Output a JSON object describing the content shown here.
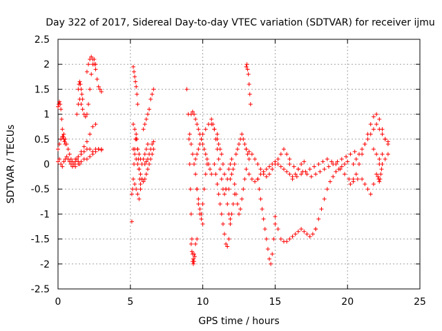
{
  "chart_data": {
    "type": "scatter",
    "title": "Day 322 of 2017, Sidereal Day-to-day VTEC variation (SDTVAR) for receiver ijmu",
    "xlabel": "GPS time / hours",
    "ylabel": "SDTVAR / TECUs",
    "xlim": [
      0,
      25
    ],
    "ylim": [
      -2.5,
      2.5
    ],
    "xticks": [
      0,
      5,
      10,
      15,
      20,
      25
    ],
    "xtick_labels": [
      "0",
      "5",
      "10",
      "15",
      "20",
      "25"
    ],
    "yticks": [
      -2.5,
      -2,
      -1.5,
      -1,
      -0.5,
      0,
      0.5,
      1,
      1.5,
      2,
      2.5
    ],
    "ytick_labels": [
      "-2.5",
      "-2",
      "-1.5",
      "-1",
      "-0.5",
      "0",
      "0.5",
      "1",
      "1.5",
      "2",
      "2.5"
    ],
    "grid": true,
    "marker": "+",
    "color": "#ff0000",
    "series": [
      {
        "name": "t0-1a",
        "x": [
          0.0,
          0.05,
          0.1,
          0.15,
          0.2,
          0.25,
          0.3,
          0.35,
          0.4,
          0.45,
          0.5
        ],
        "y": [
          1.15,
          1.2,
          1.25,
          1.2,
          1.1,
          0.9,
          0.7,
          0.55,
          0.5,
          0.45,
          0.4
        ]
      },
      {
        "name": "t0-1b",
        "x": [
          0.0,
          0.1,
          0.2,
          0.3,
          0.4,
          0.5,
          0.6,
          0.7,
          0.8,
          0.9,
          1.0,
          1.1,
          1.2,
          1.3,
          1.4,
          1.5
        ],
        "y": [
          0.05,
          0.1,
          0.0,
          -0.05,
          0.05,
          0.1,
          0.15,
          0.1,
          0.05,
          0.0,
          -0.05,
          0.0,
          0.05,
          0.1,
          0.05,
          0.0
        ]
      },
      {
        "name": "t0-1c",
        "x": [
          0.0,
          0.1,
          0.2,
          0.3,
          0.4,
          0.5,
          0.6,
          0.7,
          0.8,
          0.9,
          1.0,
          1.1,
          1.2
        ],
        "y": [
          0.3,
          0.4,
          0.5,
          0.55,
          0.6,
          0.5,
          0.4,
          0.3,
          0.2,
          0.1,
          0.05,
          0.0,
          -0.05
        ]
      },
      {
        "name": "t1-2",
        "x": [
          1.3,
          1.4,
          1.5,
          1.6,
          1.7,
          1.8,
          1.9,
          2.0,
          2.1,
          2.2,
          2.3,
          2.4,
          2.5,
          2.6
        ],
        "y": [
          1.0,
          1.2,
          1.3,
          1.2,
          1.1,
          1.0,
          0.95,
          1.0,
          1.2,
          1.5,
          1.8,
          2.0,
          2.1,
          2.0
        ]
      },
      {
        "name": "t1-2b",
        "x": [
          1.4,
          1.45,
          1.5,
          1.55,
          1.6,
          1.65,
          1.7
        ],
        "y": [
          1.5,
          1.6,
          1.65,
          1.6,
          1.5,
          1.4,
          1.3
        ]
      },
      {
        "name": "t2-3",
        "x": [
          2.0,
          2.1,
          2.2,
          2.3,
          2.4,
          2.5,
          2.6,
          2.7,
          2.8,
          2.9,
          3.0
        ],
        "y": [
          1.85,
          2.0,
          2.1,
          2.15,
          2.1,
          2.0,
          1.9,
          1.7,
          1.55,
          1.5,
          1.45
        ]
      },
      {
        "name": "t1-3low",
        "x": [
          1.2,
          1.4,
          1.6,
          1.8,
          2.0,
          2.2,
          2.4,
          2.6,
          2.8,
          3.0
        ],
        "y": [
          0.1,
          0.15,
          0.2,
          0.25,
          0.3,
          0.3,
          0.25,
          0.3,
          0.3,
          0.28
        ]
      },
      {
        "name": "t1-3mid",
        "x": [
          1.6,
          1.8,
          2.0,
          2.2,
          2.4,
          2.6
        ],
        "y": [
          0.25,
          0.35,
          0.45,
          0.6,
          0.75,
          0.8
        ]
      },
      {
        "name": "t1-3lo2",
        "x": [
          1.4,
          1.6,
          1.8,
          2.0,
          2.2,
          2.4,
          2.6,
          2.8,
          3.0
        ],
        "y": [
          0.0,
          0.05,
          0.1,
          0.1,
          0.15,
          0.2,
          0.25,
          0.3,
          0.3
        ]
      },
      {
        "name": "t5a",
        "x": [
          5.1,
          5.15,
          5.2,
          5.25,
          5.3,
          5.35,
          5.4,
          5.45,
          5.5,
          5.55,
          5.6,
          5.65,
          5.7
        ],
        "y": [
          -0.6,
          -0.5,
          -0.3,
          0.0,
          0.3,
          0.5,
          0.6,
          0.5,
          0.3,
          0.1,
          -0.1,
          -0.3,
          -0.4
        ]
      },
      {
        "name": "t5b",
        "x": [
          5.2,
          5.25,
          5.3,
          5.35,
          5.4,
          5.45,
          5.5
        ],
        "y": [
          1.95,
          1.85,
          1.75,
          1.65,
          1.55,
          1.4,
          1.2
        ]
      },
      {
        "name": "t5c",
        "x": [
          5.2,
          5.3,
          5.4,
          5.5,
          5.6,
          5.7,
          5.8,
          5.9,
          6.0,
          6.1,
          6.2
        ],
        "y": [
          0.8,
          0.7,
          0.5,
          0.3,
          0.2,
          0.1,
          0.0,
          0.1,
          0.2,
          0.3,
          0.4
        ]
      },
      {
        "name": "t5d",
        "x": [
          5.2,
          5.3,
          5.4,
          5.5,
          5.6,
          5.7,
          5.8,
          5.9,
          6.0,
          6.1,
          6.2,
          6.3,
          6.4,
          6.5,
          6.6
        ],
        "y": [
          0.3,
          0.2,
          0.1,
          0.0,
          -0.1,
          -0.2,
          -0.3,
          -0.35,
          -0.3,
          -0.2,
          -0.1,
          0.0,
          0.1,
          0.2,
          0.3
        ]
      },
      {
        "name": "t5e",
        "x": [
          5.3,
          5.4,
          5.5,
          5.6,
          5.7,
          5.8
        ],
        "y": [
          -0.4,
          -0.5,
          -0.6,
          -0.7,
          -0.5,
          -0.3
        ]
      },
      {
        "name": "t5f",
        "x": [
          5.9,
          6.0,
          6.1,
          6.2,
          6.3,
          6.4,
          6.5,
          6.6
        ],
        "y": [
          0.7,
          0.8,
          0.9,
          1.0,
          1.1,
          1.3,
          1.4,
          1.5
        ]
      },
      {
        "name": "t5g",
        "x": [
          6.0,
          6.1,
          6.2,
          6.3,
          6.4,
          6.5,
          6.6
        ],
        "y": [
          0.0,
          0.05,
          0.1,
          0.2,
          0.3,
          0.4,
          0.45
        ]
      },
      {
        "name": "t5h",
        "x": [
          5.1
        ],
        "y": [
          -1.15
        ]
      },
      {
        "name": "t9a",
        "x": [
          8.9,
          9.0,
          9.05,
          9.1,
          9.15,
          9.2,
          9.25,
          9.3,
          9.35,
          9.4,
          9.5,
          9.6
        ],
        "y": [
          1.5,
          1.0,
          0.5,
          0.0,
          -0.5,
          -1.0,
          -1.5,
          -1.8,
          -1.9,
          -1.8,
          -1.6,
          -1.5
        ]
      },
      {
        "name": "t9b",
        "x": [
          9.1,
          9.2,
          9.3,
          9.4,
          9.5,
          9.6,
          9.7,
          9.8,
          9.9,
          10.0
        ],
        "y": [
          0.6,
          0.4,
          0.2,
          0.0,
          -0.2,
          -0.5,
          -0.8,
          -1.0,
          -1.1,
          -1.2
        ]
      },
      {
        "name": "t9c",
        "x": [
          9.2,
          9.3,
          9.4,
          9.5,
          9.6,
          9.7,
          9.8,
          9.9,
          10.0,
          10.1,
          10.2,
          10.3,
          10.4,
          10.5,
          10.6
        ],
        "y": [
          1.0,
          1.05,
          1.0,
          0.9,
          0.8,
          0.7,
          0.6,
          0.5,
          0.4,
          0.3,
          0.2,
          0.1,
          0.0,
          -0.1,
          -0.2
        ]
      },
      {
        "name": "t9d",
        "x": [
          9.4,
          9.5,
          9.6,
          9.7,
          9.8,
          9.9,
          10.0,
          10.2,
          10.4,
          10.6,
          10.8,
          11.0
        ],
        "y": [
          0.0,
          0.1,
          0.2,
          0.3,
          0.4,
          0.5,
          0.6,
          0.7,
          0.8,
          0.8,
          0.7,
          0.6
        ]
      },
      {
        "name": "t9e",
        "x": [
          9.6,
          9.7,
          9.8,
          9.9,
          10.0,
          10.1,
          10.2,
          10.3
        ],
        "y": [
          -0.5,
          -0.7,
          -0.9,
          -1.0,
          -0.8,
          -0.5,
          -0.2,
          0.0
        ]
      },
      {
        "name": "t9f",
        "x": [
          9.2,
          9.25,
          9.3,
          9.35,
          9.4,
          9.45
        ],
        "y": [
          -1.6,
          -1.75,
          -1.95,
          -2.0,
          -1.95,
          -1.85
        ]
      },
      {
        "name": "t10a",
        "x": [
          10.6,
          10.7,
          10.8,
          10.9,
          11.0,
          11.1,
          11.2,
          11.3,
          11.4,
          11.5,
          11.6,
          11.7,
          11.8,
          11.9,
          12.0
        ],
        "y": [
          0.9,
          0.8,
          0.7,
          0.5,
          0.3,
          0.1,
          -0.1,
          -0.3,
          -0.5,
          -0.6,
          -0.5,
          -0.3,
          -0.1,
          0.0,
          0.1
        ]
      },
      {
        "name": "t10b",
        "x": [
          10.8,
          10.9,
          11.0,
          11.1,
          11.2,
          11.3,
          11.4,
          11.5,
          11.6,
          11.7,
          11.8,
          11.9
        ],
        "y": [
          0.0,
          -0.2,
          -0.4,
          -0.6,
          -0.8,
          -1.0,
          -1.2,
          -1.4,
          -1.6,
          -1.65,
          -1.5,
          -1.2
        ]
      },
      {
        "name": "t10c",
        "x": [
          11.0,
          11.1,
          11.2,
          11.3,
          11.4,
          11.5,
          11.6,
          11.7,
          11.8,
          11.9,
          12.0,
          12.1,
          12.2
        ],
        "y": [
          0.5,
          0.4,
          0.3,
          0.2,
          0.0,
          -0.2,
          -0.5,
          -0.8,
          -1.0,
          -1.1,
          -1.0,
          -0.8,
          -0.6
        ]
      },
      {
        "name": "t11a",
        "x": [
          11.8,
          11.9,
          12.0,
          12.1,
          12.2,
          12.3,
          12.4,
          12.5,
          12.6,
          12.7,
          12.8,
          12.9,
          13.0,
          13.1,
          13.2
        ],
        "y": [
          -0.5,
          -0.3,
          -0.2,
          -0.1,
          0.0,
          0.2,
          0.3,
          0.4,
          0.5,
          0.6,
          0.5,
          0.4,
          0.3,
          0.2,
          0.1
        ]
      },
      {
        "name": "t12a",
        "x": [
          12.2,
          12.3,
          12.4,
          12.5,
          12.6,
          12.7,
          12.8,
          12.9,
          13.0
        ],
        "y": [
          -0.4,
          -0.6,
          -0.8,
          -1.0,
          -0.9,
          -0.7,
          -0.5,
          -0.3,
          -0.1
        ]
      },
      {
        "name": "t13a",
        "x": [
          13.0,
          13.05,
          13.1,
          13.15,
          13.2,
          13.25,
          13.3
        ],
        "y": [
          1.95,
          2.0,
          1.9,
          1.8,
          1.6,
          1.4,
          1.2
        ]
      },
      {
        "name": "t13b",
        "x": [
          13.0,
          13.2,
          13.4,
          13.6,
          13.8,
          14.0,
          14.2,
          14.4,
          14.6,
          14.8,
          15.0,
          15.2,
          15.4,
          15.6,
          15.8,
          16.0
        ],
        "y": [
          0.3,
          0.25,
          0.2,
          0.1,
          0.0,
          -0.1,
          -0.2,
          -0.25,
          -0.2,
          -0.1,
          0.0,
          0.1,
          0.2,
          0.3,
          0.2,
          0.1
        ]
      },
      {
        "name": "t13c",
        "x": [
          13.2,
          13.4,
          13.6,
          13.8,
          14.0,
          14.2,
          14.4,
          14.6,
          14.8,
          15.0,
          15.2,
          15.4,
          15.6,
          15.8,
          16.0,
          16.2,
          16.4,
          16.6,
          16.8,
          17.0
        ],
        "y": [
          -0.2,
          -0.3,
          -0.35,
          -0.3,
          -0.2,
          -0.15,
          -0.1,
          -0.05,
          0.0,
          0.05,
          0.0,
          -0.05,
          -0.1,
          -0.15,
          -0.2,
          -0.25,
          -0.2,
          -0.1,
          0.0,
          0.05
        ]
      },
      {
        "name": "t14a",
        "x": [
          13.8,
          13.9,
          14.0,
          14.1,
          14.2,
          14.3,
          14.4,
          14.5,
          14.6,
          14.7,
          14.8,
          14.9,
          15.0
        ],
        "y": [
          -0.3,
          -0.5,
          -0.7,
          -0.9,
          -1.1,
          -1.3,
          -1.5,
          -1.7,
          -1.9,
          -2.0,
          -1.8,
          -1.5,
          -1.2
        ]
      },
      {
        "name": "t15a",
        "x": [
          15.0,
          15.2,
          15.4,
          15.6,
          15.8,
          16.0,
          16.2,
          16.4,
          16.6,
          16.8,
          17.0,
          17.2,
          17.4,
          17.6,
          17.8
        ],
        "y": [
          -1.05,
          -1.3,
          -1.5,
          -1.55,
          -1.55,
          -1.5,
          -1.45,
          -1.4,
          -1.35,
          -1.3,
          -1.35,
          -1.4,
          -1.45,
          -1.4,
          -1.3
        ]
      },
      {
        "name": "t17a",
        "x": [
          17.8,
          18.0,
          18.2,
          18.4,
          18.6,
          18.8,
          19.0,
          19.2,
          19.4,
          19.6,
          19.8,
          20.0
        ],
        "y": [
          -1.3,
          -1.1,
          -0.9,
          -0.7,
          -0.5,
          -0.35,
          -0.25,
          -0.15,
          -0.1,
          -0.05,
          0.0,
          0.05
        ]
      },
      {
        "name": "t16a",
        "x": [
          16.0,
          16.3,
          16.6,
          16.9,
          17.2,
          17.5,
          17.8,
          18.1,
          18.4,
          18.7,
          19.0,
          19.3,
          19.6,
          19.9,
          20.2,
          20.5
        ],
        "y": [
          0.0,
          -0.05,
          -0.1,
          -0.15,
          -0.2,
          -0.25,
          -0.2,
          -0.15,
          -0.1,
          -0.05,
          0.0,
          0.05,
          0.1,
          0.15,
          0.2,
          0.25
        ]
      },
      {
        "name": "t16b",
        "x": [
          16.2,
          16.5,
          16.8,
          17.1,
          17.4,
          17.7,
          18.0,
          18.3,
          18.6,
          18.9,
          19.2,
          19.5,
          19.8,
          20.1,
          20.4,
          20.7
        ],
        "y": [
          -0.3,
          -0.25,
          -0.2,
          -0.15,
          -0.1,
          -0.05,
          0.0,
          0.05,
          0.1,
          0.05,
          0.0,
          -0.1,
          -0.2,
          -0.3,
          -0.35,
          -0.3
        ]
      },
      {
        "name": "t20a",
        "x": [
          20.2,
          20.4,
          20.6,
          20.8,
          21.0,
          21.2,
          21.4,
          21.6,
          21.8,
          22.0,
          22.2,
          22.4,
          22.6,
          22.8
        ],
        "y": [
          -0.4,
          -0.3,
          -0.2,
          0.0,
          0.2,
          0.4,
          0.6,
          0.8,
          0.95,
          1.0,
          0.9,
          0.7,
          0.5,
          0.4
        ]
      },
      {
        "name": "t20b",
        "x": [
          20.4,
          20.6,
          20.8,
          21.0,
          21.2,
          21.4,
          21.6,
          21.8,
          22.0,
          22.2,
          22.4,
          22.6,
          22.8
        ],
        "y": [
          0.0,
          0.1,
          0.2,
          0.3,
          0.4,
          0.5,
          0.6,
          0.7,
          0.8,
          0.7,
          0.6,
          0.5,
          0.45
        ]
      },
      {
        "name": "t20c",
        "x": [
          21.0,
          21.2,
          21.4,
          21.6,
          21.8,
          22.0,
          22.2,
          22.4
        ],
        "y": [
          -0.3,
          -0.4,
          -0.5,
          -0.6,
          -0.4,
          -0.2,
          0.0,
          0.2
        ]
      },
      {
        "name": "t21a",
        "x": [
          21.8,
          22.0,
          22.2,
          22.4,
          22.6,
          22.8
        ],
        "y": [
          0.3,
          0.2,
          0.1,
          0.0,
          0.1,
          0.2
        ]
      },
      {
        "name": "t22a",
        "x": [
          22.1,
          22.15,
          22.2,
          22.25,
          22.3,
          22.35
        ],
        "y": [
          -0.25,
          -0.3,
          -0.35,
          -0.3,
          -0.2,
          -0.1
        ]
      }
    ]
  }
}
